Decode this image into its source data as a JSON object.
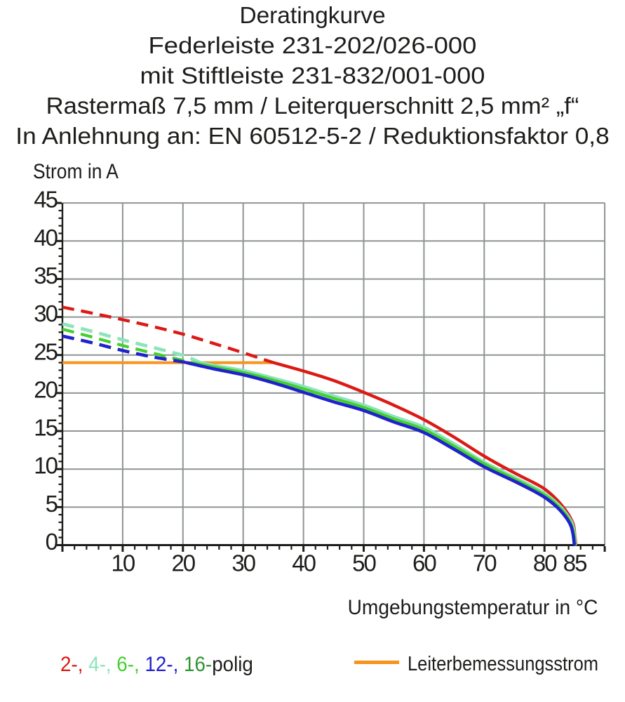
{
  "page": {
    "background_color": "#ffffff",
    "text_color": "#1d1d1b"
  },
  "title": {
    "lines": [
      "Deratingkurve",
      "Federleiste 231-202/026-000",
      "mit Stiftleiste 231-832/001-000",
      "Rastermaß 7,5 mm / Leiterquerschnitt 2,5 mm² „f“",
      "In Anlehnung an: EN 60512-5-2 / Reduktionsfaktor 0,8"
    ]
  },
  "chart_data": {
    "type": "line",
    "title": "Deratingkurve",
    "xlabel": "Umgebungstemperatur in °C",
    "ylabel": "Strom in A",
    "xlim": [
      0,
      90
    ],
    "ylim": [
      0,
      45
    ],
    "x_tick_labels": [
      10,
      20,
      30,
      40,
      50,
      60,
      70,
      80,
      85
    ],
    "x_major_step": 10,
    "x_minor_step": 2,
    "y_tick_labels": [
      0,
      5,
      10,
      15,
      20,
      25,
      30,
      35,
      40,
      45
    ],
    "y_major_step": 5,
    "y_minor_step": 1,
    "grid": true,
    "grid_color": "#8f9494",
    "axis_color": "#1d1d1b",
    "legend_position": "bottom",
    "nominal_current_line": {
      "name": "Leiterbemessungsstrom",
      "value_a": 24,
      "t_range": [
        0,
        34.8
      ],
      "color": "#f6941e"
    },
    "series": [
      {
        "name": "2-polig",
        "color": "#dc1a15",
        "dashed_points": [
          [
            0,
            31.3
          ],
          [
            5,
            30.5
          ],
          [
            10,
            29.65
          ],
          [
            15,
            28.75
          ],
          [
            20,
            27.75
          ],
          [
            25,
            26.55
          ],
          [
            30,
            25.3
          ],
          [
            34.8,
            24.05
          ]
        ],
        "solid_points": [
          [
            34.8,
            24.05
          ],
          [
            40,
            22.9
          ],
          [
            45,
            21.65
          ],
          [
            50,
            20.1
          ],
          [
            55,
            18.4
          ],
          [
            60,
            16.5
          ],
          [
            65,
            14.2
          ],
          [
            70,
            11.7
          ],
          [
            75,
            9.5
          ],
          [
            78,
            8.3
          ],
          [
            80,
            7.4
          ],
          [
            81.5,
            6.4
          ],
          [
            82.8,
            5.3
          ],
          [
            84,
            4.0
          ],
          [
            84.8,
            2.7
          ],
          [
            85.05,
            1.2
          ],
          [
            85.2,
            0.1
          ]
        ]
      },
      {
        "name": "4-polig",
        "color": "#8ee3bc",
        "dashed_points": [
          [
            0,
            29.1
          ],
          [
            5,
            28.1
          ],
          [
            10,
            27.0
          ],
          [
            15,
            26.0
          ],
          [
            20,
            24.95
          ],
          [
            22.9,
            24.0
          ]
        ],
        "solid_points": [
          [
            22.9,
            24.0
          ],
          [
            25,
            23.65
          ],
          [
            30,
            22.95
          ],
          [
            35,
            21.95
          ],
          [
            40,
            20.85
          ],
          [
            45,
            19.6
          ],
          [
            50,
            18.4
          ],
          [
            55,
            16.9
          ],
          [
            60,
            15.5
          ],
          [
            65,
            13.3
          ],
          [
            70,
            10.9
          ],
          [
            75,
            8.9
          ],
          [
            78,
            7.7
          ],
          [
            80,
            6.8
          ],
          [
            81.5,
            5.9
          ],
          [
            82.8,
            4.9
          ],
          [
            83.8,
            3.9
          ],
          [
            84.6,
            2.8
          ],
          [
            84.95,
            1.5
          ],
          [
            85.1,
            0.1
          ]
        ]
      },
      {
        "name": "6-polig",
        "color": "#43d02c",
        "dashed_points": [
          [
            0,
            28.4
          ],
          [
            5,
            27.35
          ],
          [
            10,
            26.25
          ],
          [
            15,
            25.25
          ],
          [
            20,
            24.3
          ],
          [
            21.6,
            24.0
          ]
        ],
        "solid_points": [
          [
            21.6,
            24.0
          ],
          [
            25,
            23.45
          ],
          [
            30,
            22.7
          ],
          [
            35,
            21.7
          ],
          [
            40,
            20.55
          ],
          [
            45,
            19.3
          ],
          [
            50,
            18.1
          ],
          [
            55,
            16.6
          ],
          [
            60,
            15.2
          ],
          [
            65,
            13.0
          ],
          [
            70,
            10.7
          ],
          [
            75,
            8.7
          ],
          [
            78,
            7.5
          ],
          [
            80,
            6.6
          ],
          [
            81.5,
            5.7
          ],
          [
            82.8,
            4.7
          ],
          [
            83.8,
            3.7
          ],
          [
            84.5,
            2.6
          ],
          [
            84.9,
            1.4
          ],
          [
            85.05,
            0.1
          ]
        ]
      },
      {
        "name": "16-polig",
        "color": "#2e9430",
        "overlaps": "12-polig",
        "dashed_points": [
          [
            0,
            27.5
          ],
          [
            5,
            26.6
          ],
          [
            10,
            25.6
          ],
          [
            15,
            24.75
          ],
          [
            20,
            24.1
          ],
          [
            20.6,
            24.0
          ]
        ],
        "solid_points": [
          [
            20.6,
            24.0
          ],
          [
            25,
            23.2
          ],
          [
            30,
            22.4
          ],
          [
            35,
            21.35
          ],
          [
            40,
            20.1
          ],
          [
            45,
            18.85
          ],
          [
            50,
            17.7
          ],
          [
            55,
            16.2
          ],
          [
            60,
            14.8
          ],
          [
            65,
            12.6
          ],
          [
            70,
            10.3
          ],
          [
            75,
            8.4
          ],
          [
            78,
            7.2
          ],
          [
            80,
            6.3
          ],
          [
            81.5,
            5.4
          ],
          [
            82.7,
            4.5
          ],
          [
            83.7,
            3.5
          ],
          [
            84.4,
            2.5
          ],
          [
            84.75,
            1.4
          ],
          [
            84.95,
            0.1
          ]
        ]
      },
      {
        "name": "12-polig",
        "color": "#2022cc",
        "dashed_points": [
          [
            0,
            27.5
          ],
          [
            5,
            26.6
          ],
          [
            10,
            25.6
          ],
          [
            15,
            24.75
          ],
          [
            20,
            24.1
          ],
          [
            20.6,
            24.0
          ]
        ],
        "solid_points": [
          [
            20.6,
            24.0
          ],
          [
            25,
            23.2
          ],
          [
            30,
            22.4
          ],
          [
            35,
            21.35
          ],
          [
            40,
            20.1
          ],
          [
            45,
            18.85
          ],
          [
            50,
            17.7
          ],
          [
            55,
            16.2
          ],
          [
            60,
            14.8
          ],
          [
            65,
            12.6
          ],
          [
            70,
            10.3
          ],
          [
            75,
            8.4
          ],
          [
            78,
            7.2
          ],
          [
            80,
            6.3
          ],
          [
            81.5,
            5.4
          ],
          [
            82.7,
            4.5
          ],
          [
            83.7,
            3.5
          ],
          [
            84.4,
            2.5
          ],
          [
            84.75,
            1.4
          ],
          [
            84.95,
            0.1
          ]
        ]
      }
    ]
  },
  "legend": {
    "poles": {
      "parts": [
        {
          "text": "2-,",
          "color": "#dc1a15"
        },
        {
          "text": " 4-,",
          "color": "#8ee3bc"
        },
        {
          "text": " 6-,",
          "color": "#43d02c"
        },
        {
          "text": " 12-,",
          "color": "#2022cc"
        },
        {
          "text": " 16-",
          "color": "#2e9430"
        },
        {
          "text": "polig",
          "color": "#1d1d1b"
        }
      ]
    },
    "nominal_label": "Leiterbemessungsstrom",
    "nominal_swatch_color": "#f6941e"
  }
}
